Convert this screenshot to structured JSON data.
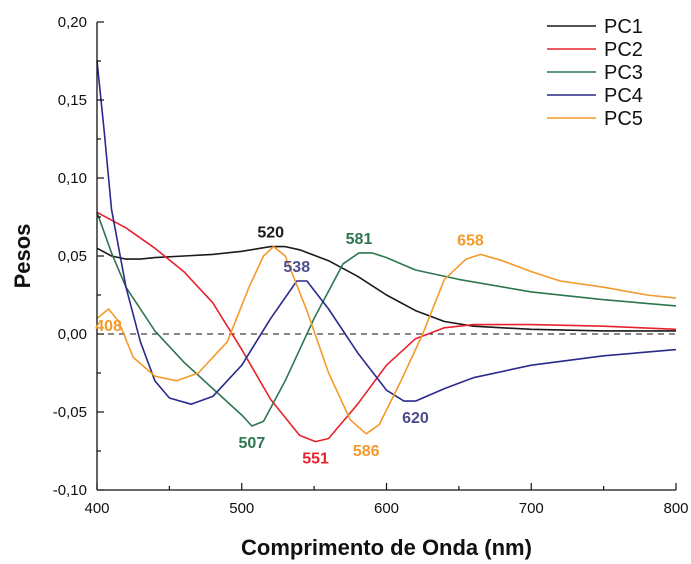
{
  "chart_data": {
    "type": "line",
    "xlabel": "Comprimento de Onda (nm)",
    "ylabel": "Pesos",
    "xlim": [
      400,
      800
    ],
    "ylim": [
      -0.1,
      0.2
    ],
    "x_ticks": [
      400,
      500,
      600,
      700,
      800
    ],
    "x_tick_labels": [
      "400",
      "500",
      "600",
      "700",
      "800"
    ],
    "y_ticks": [
      -0.1,
      -0.05,
      0.0,
      0.05,
      0.1,
      0.15,
      0.2
    ],
    "y_tick_labels": [
      "-0,10",
      "-0,05",
      "0,00",
      "0,05",
      "0,10",
      "0,15",
      "0,20"
    ],
    "reference_line": {
      "y": 0.0,
      "style": "dashed"
    },
    "legend_position": "top-right",
    "series": [
      {
        "name": "PC1",
        "color": "#1a1a1a",
        "points": [
          [
            400,
            0.055
          ],
          [
            410,
            0.05
          ],
          [
            420,
            0.048
          ],
          [
            430,
            0.048
          ],
          [
            440,
            0.049
          ],
          [
            460,
            0.05
          ],
          [
            480,
            0.051
          ],
          [
            500,
            0.053
          ],
          [
            520,
            0.056
          ],
          [
            530,
            0.056
          ],
          [
            540,
            0.054
          ],
          [
            560,
            0.047
          ],
          [
            580,
            0.037
          ],
          [
            600,
            0.025
          ],
          [
            620,
            0.015
          ],
          [
            640,
            0.008
          ],
          [
            660,
            0.005
          ],
          [
            680,
            0.004
          ],
          [
            700,
            0.003
          ],
          [
            750,
            0.002
          ],
          [
            800,
            0.002
          ]
        ]
      },
      {
        "name": "PC2",
        "color": "#e8222c",
        "points": [
          [
            400,
            0.078
          ],
          [
            420,
            0.068
          ],
          [
            440,
            0.055
          ],
          [
            460,
            0.04
          ],
          [
            480,
            0.02
          ],
          [
            500,
            -0.01
          ],
          [
            520,
            -0.042
          ],
          [
            540,
            -0.065
          ],
          [
            551,
            -0.069
          ],
          [
            560,
            -0.067
          ],
          [
            580,
            -0.045
          ],
          [
            600,
            -0.02
          ],
          [
            620,
            -0.003
          ],
          [
            640,
            0.004
          ],
          [
            660,
            0.006
          ],
          [
            700,
            0.006
          ],
          [
            750,
            0.005
          ],
          [
            800,
            0.003
          ]
        ]
      },
      {
        "name": "PC3",
        "color": "#2d7650",
        "points": [
          [
            400,
            0.078
          ],
          [
            410,
            0.052
          ],
          [
            420,
            0.03
          ],
          [
            440,
            0.002
          ],
          [
            460,
            -0.018
          ],
          [
            480,
            -0.035
          ],
          [
            500,
            -0.052
          ],
          [
            507,
            -0.059
          ],
          [
            515,
            -0.056
          ],
          [
            530,
            -0.03
          ],
          [
            550,
            0.01
          ],
          [
            570,
            0.045
          ],
          [
            581,
            0.052
          ],
          [
            590,
            0.052
          ],
          [
            600,
            0.049
          ],
          [
            620,
            0.041
          ],
          [
            650,
            0.035
          ],
          [
            700,
            0.027
          ],
          [
            750,
            0.022
          ],
          [
            800,
            0.018
          ]
        ]
      },
      {
        "name": "PC4",
        "color": "#2a2a8c",
        "points": [
          [
            400,
            0.175
          ],
          [
            405,
            0.13
          ],
          [
            410,
            0.08
          ],
          [
            420,
            0.03
          ],
          [
            430,
            -0.005
          ],
          [
            440,
            -0.03
          ],
          [
            450,
            -0.041
          ],
          [
            465,
            -0.045
          ],
          [
            480,
            -0.04
          ],
          [
            500,
            -0.02
          ],
          [
            520,
            0.01
          ],
          [
            538,
            0.034
          ],
          [
            545,
            0.034
          ],
          [
            560,
            0.016
          ],
          [
            580,
            -0.012
          ],
          [
            600,
            -0.036
          ],
          [
            612,
            -0.043
          ],
          [
            620,
            -0.043
          ],
          [
            640,
            -0.035
          ],
          [
            660,
            -0.028
          ],
          [
            700,
            -0.02
          ],
          [
            750,
            -0.014
          ],
          [
            800,
            -0.01
          ]
        ]
      },
      {
        "name": "PC5",
        "color": "#f39a2a",
        "points": [
          [
            400,
            0.01
          ],
          [
            408,
            0.016
          ],
          [
            415,
            0.008
          ],
          [
            425,
            -0.015
          ],
          [
            440,
            -0.027
          ],
          [
            455,
            -0.03
          ],
          [
            470,
            -0.025
          ],
          [
            490,
            -0.005
          ],
          [
            505,
            0.03
          ],
          [
            515,
            0.05
          ],
          [
            522,
            0.056
          ],
          [
            530,
            0.05
          ],
          [
            545,
            0.015
          ],
          [
            560,
            -0.025
          ],
          [
            575,
            -0.055
          ],
          [
            586,
            -0.064
          ],
          [
            595,
            -0.058
          ],
          [
            610,
            -0.03
          ],
          [
            625,
            0.0
          ],
          [
            640,
            0.035
          ],
          [
            655,
            0.048
          ],
          [
            665,
            0.051
          ],
          [
            680,
            0.047
          ],
          [
            700,
            0.04
          ],
          [
            720,
            0.034
          ],
          [
            750,
            0.03
          ],
          [
            780,
            0.025
          ],
          [
            800,
            0.023
          ]
        ]
      }
    ],
    "annotations": [
      {
        "text": "520",
        "x": 520,
        "y": 0.056,
        "color": "#1a1a1a",
        "pos": "above"
      },
      {
        "text": "581",
        "x": 581,
        "y": 0.052,
        "color": "#2d7650",
        "pos": "above"
      },
      {
        "text": "658",
        "x": 658,
        "y": 0.051,
        "color": "#f39a2a",
        "pos": "above"
      },
      {
        "text": "538",
        "x": 538,
        "y": 0.034,
        "color": "#4d4d8c",
        "pos": "above"
      },
      {
        "text": "408",
        "x": 408,
        "y": 0.016,
        "color": "#f39a2a",
        "pos": "below"
      },
      {
        "text": "620",
        "x": 620,
        "y": -0.043,
        "color": "#4d4d8c",
        "pos": "below"
      },
      {
        "text": "507",
        "x": 507,
        "y": -0.059,
        "color": "#2d7650",
        "pos": "below"
      },
      {
        "text": "551",
        "x": 551,
        "y": -0.069,
        "color": "#e8222c",
        "pos": "below"
      },
      {
        "text": "586",
        "x": 586,
        "y": -0.064,
        "color": "#f39a2a",
        "pos": "below"
      }
    ]
  }
}
